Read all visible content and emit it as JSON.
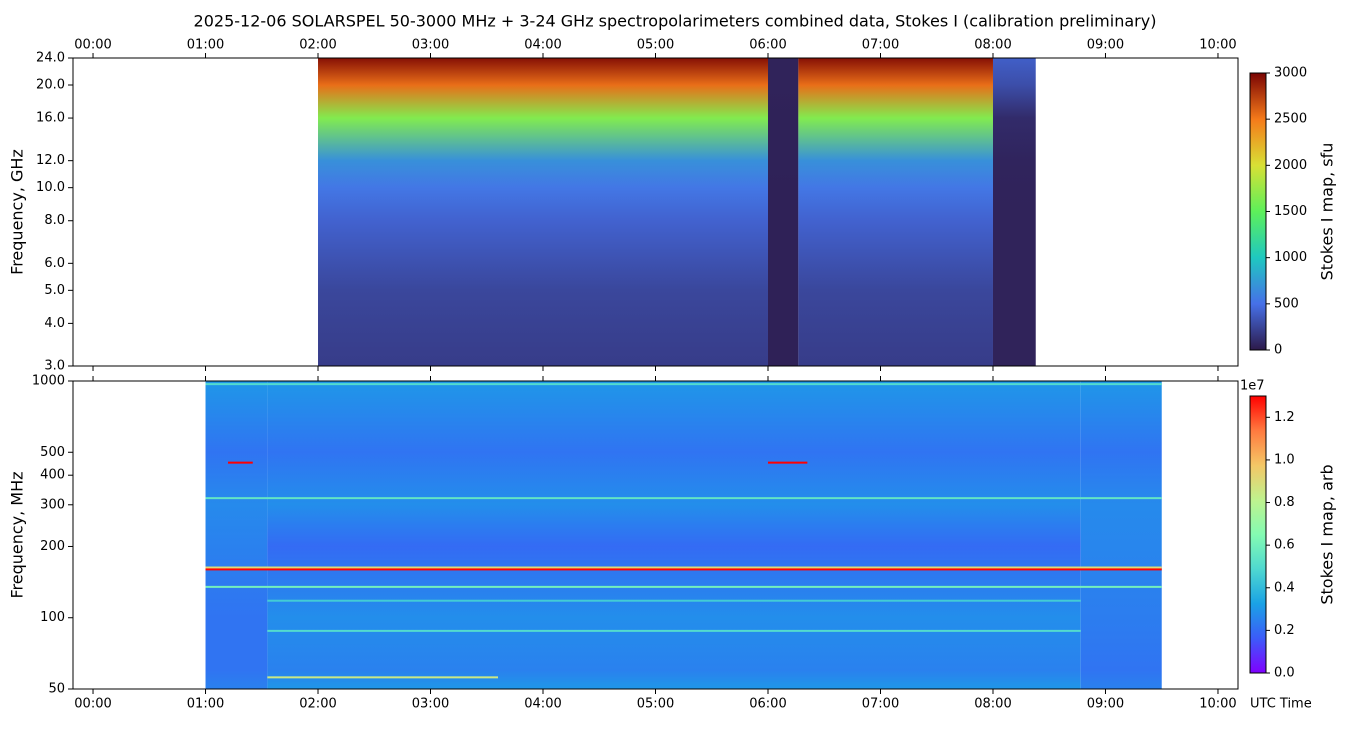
{
  "chart_data": [
    {
      "type": "spectrogram",
      "title": "2025-12-06  SOLARSPEL  50-3000 MHz  +  3-24 GHz  spectropolarimeters combined data,  Stokes I  (calibration preliminary)",
      "ylabel": "Frequency, GHz",
      "colorbar_label": "Stokes I map, sfu",
      "x_tick_labels_position": "top",
      "xlim": [
        -0.178,
        10.178
      ],
      "xticks": [
        {
          "value": 0,
          "label": "00:00"
        },
        {
          "value": 1,
          "label": "01:00"
        },
        {
          "value": 2,
          "label": "02:00"
        },
        {
          "value": 3,
          "label": "03:00"
        },
        {
          "value": 4,
          "label": "04:00"
        },
        {
          "value": 5,
          "label": "05:00"
        },
        {
          "value": 6,
          "label": "06:00"
        },
        {
          "value": 7,
          "label": "07:00"
        },
        {
          "value": 8,
          "label": "08:00"
        },
        {
          "value": 9,
          "label": "09:00"
        },
        {
          "value": 10,
          "label": "10:00"
        }
      ],
      "log_y": true,
      "ylim": [
        3,
        24
      ],
      "yticks": [
        {
          "value": 3,
          "label": "3.0"
        },
        {
          "value": 4,
          "label": "4.0"
        },
        {
          "value": 5,
          "label": "5.0"
        },
        {
          "value": 6,
          "label": "6.0"
        },
        {
          "value": 8,
          "label": "8.0"
        },
        {
          "value": 10,
          "label": "10.0"
        },
        {
          "value": 12,
          "label": "12.0"
        },
        {
          "value": 16,
          "label": "16.0"
        },
        {
          "value": 20,
          "label": "20.0"
        },
        {
          "value": 24,
          "label": "24.0"
        }
      ],
      "zlim": [
        0,
        3000
      ],
      "zticks": [
        0,
        500,
        1000,
        1500,
        2000,
        2500,
        3000
      ],
      "colormap": [
        "#2d1a4a",
        "#4670e8",
        "#1fc8c0",
        "#5df05a",
        "#d8e035",
        "#f57a1a",
        "#7a0403"
      ],
      "y_levels": [
        3,
        4,
        5,
        6,
        8,
        10,
        12,
        16,
        20,
        24
      ],
      "segments": [
        {
          "start": 2.0,
          "end": 6.0,
          "values": [
            200,
            230,
            260,
            320,
            420,
            540,
            680,
            1650,
            2550,
            2950
          ]
        },
        {
          "start": 6.0,
          "end": 6.27,
          "values": [
            40,
            40,
            40,
            40,
            40,
            40,
            45,
            45,
            50,
            50
          ]
        },
        {
          "start": 6.27,
          "end": 8.0,
          "values": [
            200,
            230,
            260,
            320,
            420,
            540,
            680,
            1650,
            2550,
            2950
          ]
        },
        {
          "start": 8.0,
          "end": 8.38,
          "values": [
            50,
            50,
            50,
            50,
            50,
            55,
            60,
            100,
            300,
            400
          ]
        }
      ],
      "lines": []
    },
    {
      "type": "spectrogram",
      "ylabel": "Frequency, MHz",
      "xlabel": "UTC Time",
      "colorbar_label": "Stokes I map, arb",
      "colorbar_offset": "1e7",
      "x_tick_labels_position": "bottom",
      "xlim": [
        -0.178,
        10.178
      ],
      "xticks": [
        {
          "value": 0,
          "label": "00:00"
        },
        {
          "value": 1,
          "label": "01:00"
        },
        {
          "value": 2,
          "label": "02:00"
        },
        {
          "value": 3,
          "label": "03:00"
        },
        {
          "value": 4,
          "label": "04:00"
        },
        {
          "value": 5,
          "label": "05:00"
        },
        {
          "value": 6,
          "label": "06:00"
        },
        {
          "value": 7,
          "label": "07:00"
        },
        {
          "value": 8,
          "label": "08:00"
        },
        {
          "value": 9,
          "label": "09:00"
        },
        {
          "value": 10,
          "label": "10:00"
        }
      ],
      "log_y": true,
      "ylim": [
        50,
        1000
      ],
      "yticks": [
        50,
        100,
        200,
        300,
        400,
        500,
        1000
      ],
      "zlim": [
        0,
        1.3
      ],
      "zticks": [
        {
          "value": 0,
          "label": "0.0"
        },
        0.2,
        0.4,
        0.6,
        0.8,
        {
          "value": 1,
          "label": "1.0"
        },
        1.2
      ],
      "colormap": [
        "#8000ff",
        "#3c5bf9",
        "#1aa2e5",
        "#4fd8d0",
        "#84fbb2",
        "#bff28e",
        "#f4c766",
        "#ff7a3f",
        "#ff0000"
      ],
      "y_levels": [
        50,
        60,
        100,
        200,
        300,
        500,
        1000
      ],
      "segments": [
        {
          "start": 1.0,
          "end": 1.55,
          "values": [
            0.25,
            0.22,
            0.22,
            0.25,
            0.27,
            0.22,
            0.3
          ]
        },
        {
          "start": 1.55,
          "end": 8.78,
          "values": [
            0.3,
            0.25,
            0.28,
            0.2,
            0.28,
            0.22,
            0.3
          ]
        },
        {
          "start": 8.78,
          "end": 9.5,
          "values": [
            0.25,
            0.22,
            0.24,
            0.26,
            0.27,
            0.22,
            0.3
          ]
        }
      ],
      "lines": [
        {
          "freq": 970,
          "start": 1.0,
          "end": 9.5,
          "value": 0.5
        },
        {
          "freq": 452,
          "start": 1.2,
          "end": 1.42,
          "value": 1.3
        },
        {
          "freq": 452,
          "start": 6.0,
          "end": 6.35,
          "value": 1.3
        },
        {
          "freq": 320,
          "start": 1.0,
          "end": 9.5,
          "value": 0.55
        },
        {
          "freq": 163,
          "start": 1.0,
          "end": 9.5,
          "value": 0.9
        },
        {
          "freq": 160,
          "start": 1.0,
          "end": 9.5,
          "value": 1.3
        },
        {
          "freq": 135,
          "start": 1.0,
          "end": 9.5,
          "value": 0.6
        },
        {
          "freq": 118,
          "start": 1.55,
          "end": 8.78,
          "value": 0.45
        },
        {
          "freq": 88,
          "start": 1.55,
          "end": 8.78,
          "value": 0.5
        },
        {
          "freq": 56,
          "start": 1.55,
          "end": 3.6,
          "value": 0.85
        }
      ]
    }
  ]
}
